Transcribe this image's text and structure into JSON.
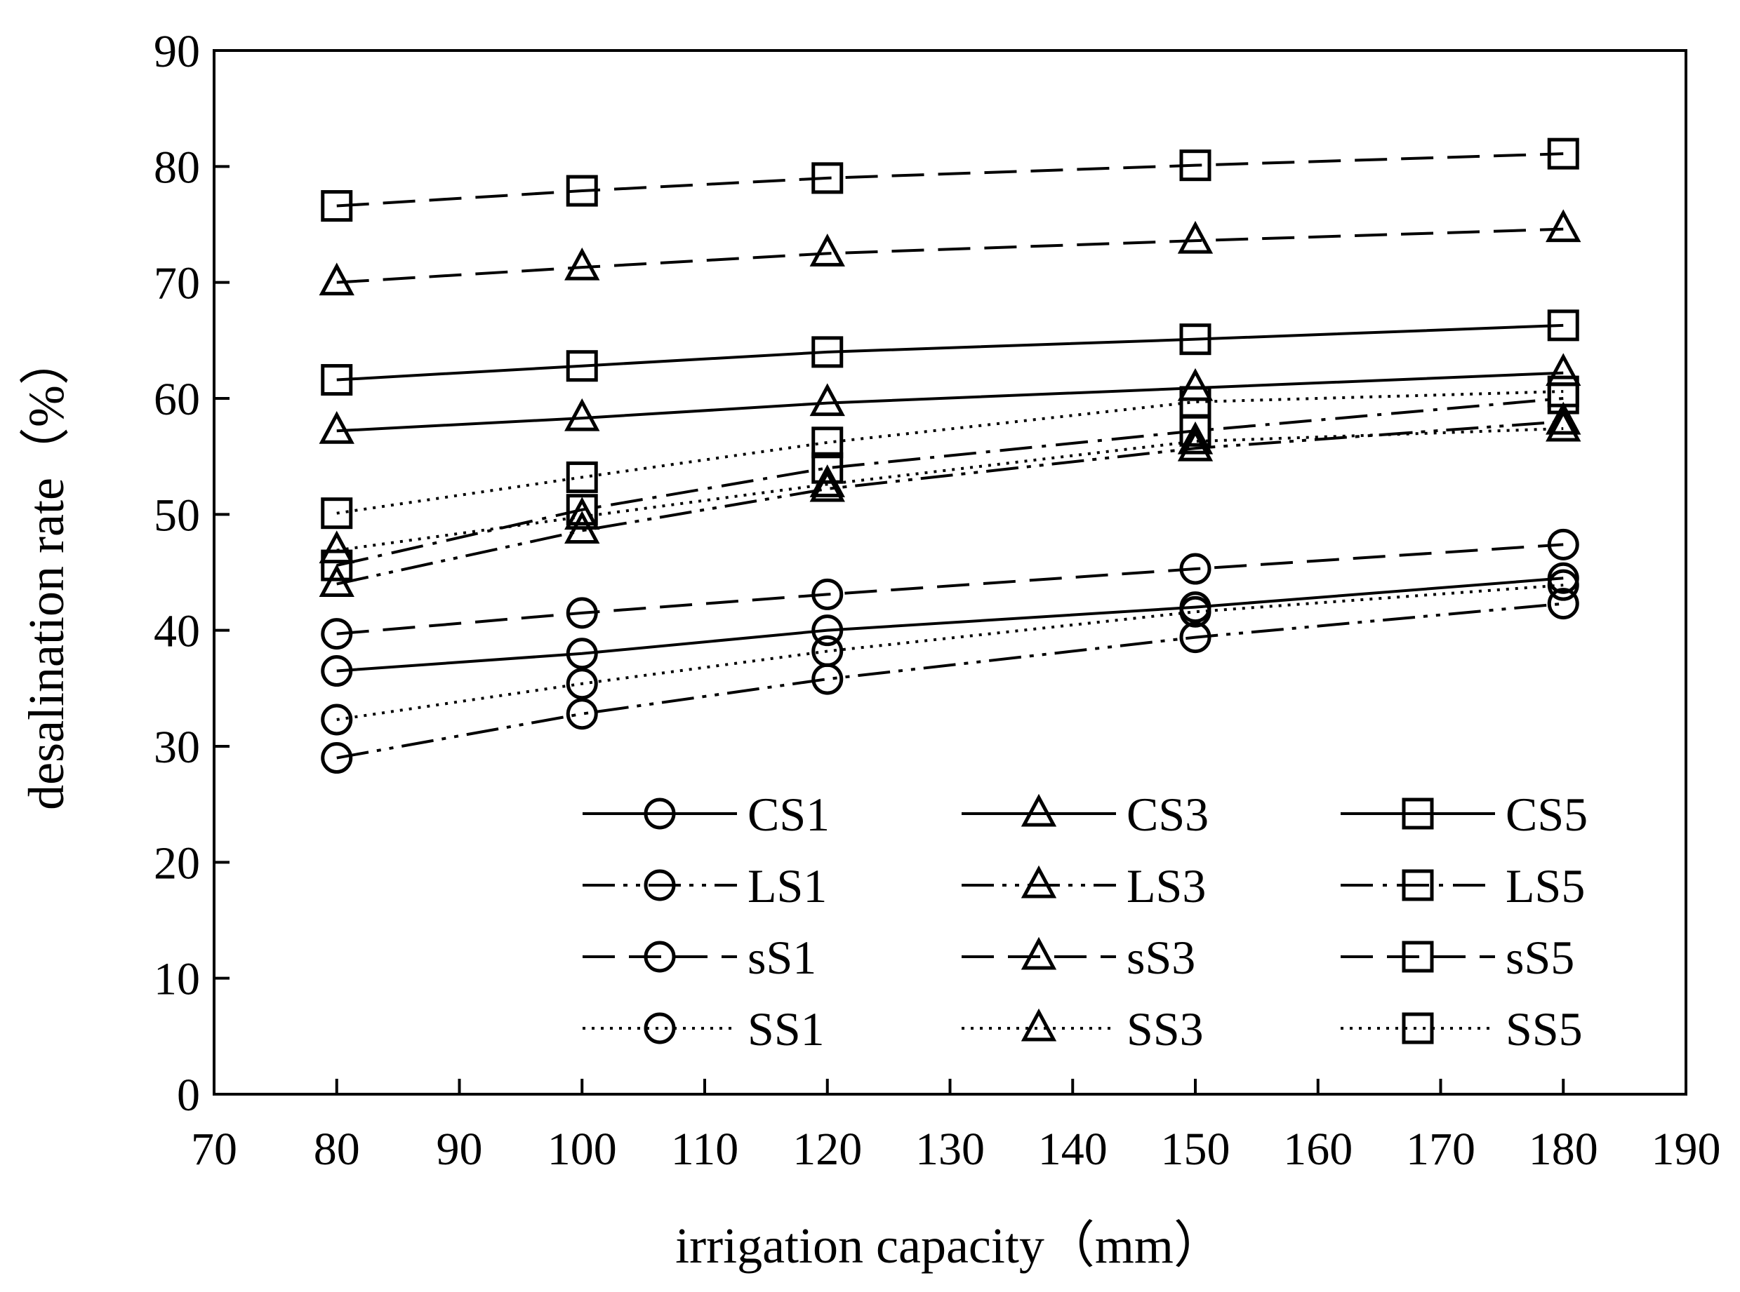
{
  "chart_data": {
    "type": "line",
    "title": "",
    "xlabel": "irrigation capacity（mm）",
    "ylabel": "desalination rate（%）",
    "xlim": [
      70,
      190
    ],
    "ylim": [
      0,
      90
    ],
    "xticks": [
      "70",
      "80",
      "90",
      "100",
      "110",
      "120",
      "130",
      "140",
      "150",
      "160",
      "170",
      "180",
      "190"
    ],
    "yticks": [
      "0",
      "10",
      "20",
      "30",
      "40",
      "50",
      "60",
      "70",
      "80",
      "90"
    ],
    "grid": false,
    "legend_position": "bottom-right",
    "x": [
      80,
      100,
      120,
      150,
      180
    ],
    "series": [
      {
        "name": "CS1",
        "line": "solid",
        "marker": "circle",
        "values": [
          36.5,
          38.0,
          40.0,
          42.0,
          44.5
        ]
      },
      {
        "name": "CS3",
        "line": "solid",
        "marker": "triangle",
        "values": [
          57.2,
          58.3,
          59.6,
          60.9,
          62.2
        ]
      },
      {
        "name": "CS5",
        "line": "solid",
        "marker": "square",
        "values": [
          61.6,
          62.8,
          64.0,
          65.1,
          66.3
        ]
      },
      {
        "name": "LS1",
        "line": "dashdotdot",
        "marker": "circle",
        "values": [
          29.0,
          32.8,
          35.8,
          39.4,
          42.3
        ]
      },
      {
        "name": "LS3",
        "line": "dashdotdot",
        "marker": "triangle",
        "values": [
          44.0,
          48.6,
          52.2,
          55.7,
          58.0
        ]
      },
      {
        "name": "LS5",
        "line": "dashdot",
        "marker": "square",
        "values": [
          45.6,
          50.4,
          54.0,
          57.2,
          60.0
        ]
      },
      {
        "name": "sS1",
        "line": "dashed",
        "marker": "circle",
        "values": [
          39.7,
          41.5,
          43.1,
          45.3,
          47.4
        ]
      },
      {
        "name": "sS3",
        "line": "dashed",
        "marker": "triangle",
        "values": [
          70.0,
          71.3,
          72.5,
          73.6,
          74.6
        ]
      },
      {
        "name": "sS5",
        "line": "dashed",
        "marker": "square",
        "values": [
          76.6,
          77.9,
          79.0,
          80.1,
          81.1
        ]
      },
      {
        "name": "SS1",
        "line": "dotted",
        "marker": "circle",
        "values": [
          32.3,
          35.4,
          38.2,
          41.6,
          43.9
        ]
      },
      {
        "name": "SS3",
        "line": "dotted",
        "marker": "triangle",
        "values": [
          46.9,
          49.8,
          52.6,
          56.3,
          57.4
        ]
      },
      {
        "name": "SS5",
        "line": "dotted",
        "marker": "square",
        "values": [
          50.1,
          53.2,
          56.2,
          59.7,
          60.6
        ]
      }
    ]
  }
}
